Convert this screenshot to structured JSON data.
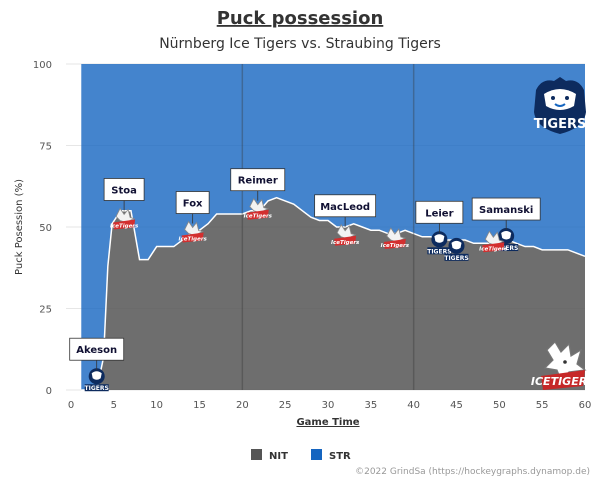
{
  "chart_data": {
    "type": "area",
    "title": "Puck possession",
    "subtitle": "Nürnberg Ice Tigers vs. Straubing Tigers",
    "xlabel": "Game Time",
    "ylabel": "Puck Posession (%)",
    "xlim": [
      0,
      60
    ],
    "ylim": [
      0,
      100
    ],
    "x_ticks": [
      "0",
      "5",
      "10",
      "15",
      "20",
      "25",
      "30",
      "35",
      "40",
      "45",
      "50",
      "55",
      "60"
    ],
    "y_ticks": [
      "0",
      "25",
      "50",
      "75",
      "100"
    ],
    "period_lines": [
      20,
      40
    ],
    "x": [
      1.2,
      2.0,
      3.0,
      3.8,
      4.3,
      4.8,
      5.3,
      6,
      7,
      8,
      9,
      10,
      11,
      12,
      13,
      14,
      15,
      16,
      17,
      18,
      19,
      20,
      21,
      22,
      23,
      24,
      25,
      26,
      27,
      28,
      29,
      30,
      31,
      32,
      33,
      34,
      35,
      36,
      37,
      38,
      39,
      40,
      41,
      42,
      43,
      44,
      45,
      46,
      47,
      48,
      49,
      50,
      51,
      52,
      53,
      54,
      55,
      56,
      57,
      58,
      59,
      60
    ],
    "series": [
      {
        "name": "NIT",
        "color": "#555555",
        "values": [
          0,
          0,
          0,
          10,
          38,
          51,
          53,
          55,
          55,
          40,
          40,
          44,
          44,
          44,
          46,
          48,
          49,
          51,
          54,
          54,
          54,
          54,
          55,
          55,
          58,
          59,
          58,
          57,
          55,
          53,
          52,
          52,
          50,
          50,
          51,
          50,
          49,
          49,
          48,
          48,
          49,
          48,
          47,
          47,
          46,
          46,
          46,
          46,
          45,
          45,
          45,
          46,
          46,
          45,
          44,
          44,
          43,
          43,
          43,
          43,
          42,
          41
        ]
      },
      {
        "name": "STR",
        "color": "#1565c0",
        "values": [
          100,
          100,
          100,
          90,
          62,
          49,
          47,
          45,
          45,
          60,
          60,
          56,
          56,
          56,
          54,
          52,
          51,
          49,
          46,
          46,
          46,
          46,
          45,
          45,
          42,
          41,
          42,
          43,
          45,
          47,
          48,
          48,
          50,
          50,
          49,
          50,
          51,
          51,
          52,
          52,
          51,
          52,
          53,
          53,
          54,
          54,
          54,
          54,
          55,
          55,
          55,
          54,
          54,
          55,
          56,
          56,
          57,
          57,
          57,
          57,
          58,
          59
        ]
      }
    ],
    "annotations": [
      {
        "label": "Akeson",
        "x": 3.0,
        "y": 3,
        "team": "STR"
      },
      {
        "label": "Stoa",
        "x": 6.2,
        "y": 52,
        "team": "NIT"
      },
      {
        "label": "Fox",
        "x": 14.2,
        "y": 48,
        "team": "NIT"
      },
      {
        "label": "Reimer",
        "x": 21.8,
        "y": 55,
        "team": "NIT"
      },
      {
        "label": "MacLeod",
        "x": 32.0,
        "y": 47,
        "team": "NIT"
      },
      {
        "label": "Leier",
        "x": 43.0,
        "y": 45,
        "team": "STR"
      },
      {
        "label": "Samanski",
        "x": 50.8,
        "y": 46,
        "team": "STR"
      }
    ],
    "extra_logos": [
      {
        "x": 37.8,
        "y": 46,
        "team": "NIT"
      },
      {
        "x": 45.0,
        "y": 43,
        "team": "STR"
      },
      {
        "x": 49.3,
        "y": 45,
        "team": "NIT"
      }
    ],
    "legend": {
      "position": "bottom-center",
      "entries": [
        {
          "name": "NIT",
          "color": "#555555"
        },
        {
          "name": "STR",
          "color": "#1565c0"
        }
      ]
    },
    "grid": "horizontal"
  },
  "logos": {
    "str_text": "TIGERS",
    "nit_text": "ICETIGERS",
    "small_str_text": "TIGERS",
    "small_nit_text": "IceTigers"
  },
  "credit": "©2022 GrindSa (https://hockeygraphs.dynamop.de)"
}
